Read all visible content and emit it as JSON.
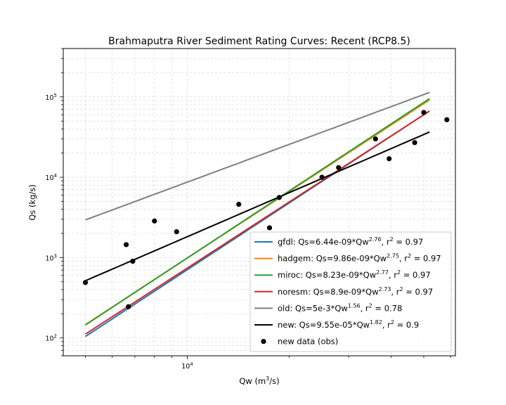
{
  "chart_data": {
    "type": "line",
    "title": "Brahmaputra River Sediment Rating Curves: Recent (RCP8.5)",
    "xlabel_main": "Qw (m",
    "xlabel_sup": "3",
    "xlabel_end": "/s)",
    "ylabel": "Qs (kg/s)",
    "xscale": "log",
    "yscale": "log",
    "xlim": [
      4300,
      62000
    ],
    "ylim": [
      60,
      400000
    ],
    "xticks": [
      {
        "value": 10000,
        "base": "10",
        "exp": "4"
      }
    ],
    "yticks": [
      {
        "value": 100,
        "base": "10",
        "exp": "2"
      },
      {
        "value": 1000,
        "base": "10",
        "exp": "3"
      },
      {
        "value": 10000,
        "base": "10",
        "exp": "4"
      },
      {
        "value": 100000,
        "base": "10",
        "exp": "5"
      }
    ],
    "grid": true,
    "legend_position": "lower-right",
    "series": [
      {
        "name": "gfdl",
        "label": "gfdl: Qs=6.44e-09*Qw",
        "exp": "2.76",
        "r2": ", r",
        "r2val": " = 0.97",
        "color": "#1f77b4",
        "a": 6.44e-09,
        "b": 2.76,
        "x_range": [
          5000,
          52000
        ]
      },
      {
        "name": "hadgem",
        "label": "hadgem: Qs=9.86e-09*Qw",
        "exp": "2.75",
        "r2": ", r",
        "r2val": " = 0.97",
        "color": "#ff7f0e",
        "a": 9.86e-09,
        "b": 2.75,
        "x_range": [
          5000,
          52000
        ]
      },
      {
        "name": "miroc",
        "label": "miroc: Qs=8.23e-09*Qw",
        "exp": "2.77",
        "r2": ", r",
        "r2val": " = 0.97",
        "color": "#2ca02c",
        "a": 8.23e-09,
        "b": 2.77,
        "x_range": [
          5000,
          52000
        ]
      },
      {
        "name": "noresm",
        "label": "noresm: Qs=8.9e-09*Qw",
        "exp": "2.73",
        "r2": ", r",
        "r2val": " = 0.97",
        "color": "#d62728",
        "a": 8.9e-09,
        "b": 2.73,
        "x_range": [
          5000,
          52000
        ]
      },
      {
        "name": "old",
        "label": "old: Qs=5e-3*Qw",
        "exp": "1.56",
        "r2": ", r",
        "r2val": " = 0.78",
        "color": "#7f7f7f",
        "a": 0.005,
        "b": 1.56,
        "x_range": [
          5000,
          52000
        ]
      },
      {
        "name": "new",
        "label": "new: Qs=9.55e-05*Qw",
        "exp": "1.82",
        "r2": ", r",
        "r2val": " = 0.9",
        "color": "#000000",
        "a": 9.55e-05,
        "b": 1.82,
        "x_range": [
          5000,
          52000
        ]
      }
    ],
    "scatter": {
      "name": "new data (obs)",
      "color": "#000000",
      "points": [
        {
          "x": 5000,
          "y": 490
        },
        {
          "x": 6600,
          "y": 1450
        },
        {
          "x": 6700,
          "y": 245
        },
        {
          "x": 6900,
          "y": 900
        },
        {
          "x": 8000,
          "y": 2850
        },
        {
          "x": 9300,
          "y": 2100
        },
        {
          "x": 14200,
          "y": 4600
        },
        {
          "x": 17500,
          "y": 2350
        },
        {
          "x": 18700,
          "y": 5600
        },
        {
          "x": 25000,
          "y": 10000
        },
        {
          "x": 28000,
          "y": 13200
        },
        {
          "x": 36000,
          "y": 30000
        },
        {
          "x": 39500,
          "y": 17000
        },
        {
          "x": 47000,
          "y": 27000
        },
        {
          "x": 50000,
          "y": 64000
        },
        {
          "x": 58500,
          "y": 52000
        }
      ]
    }
  }
}
